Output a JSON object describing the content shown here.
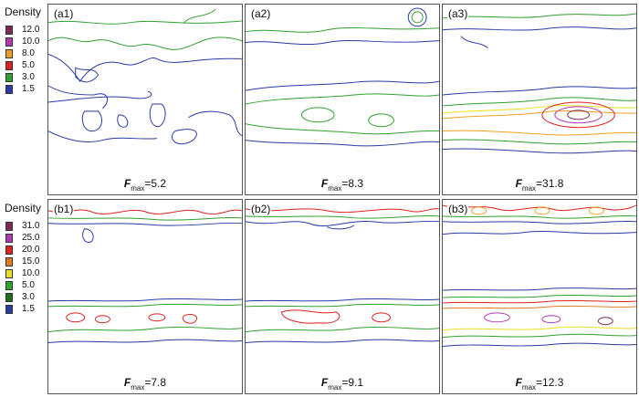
{
  "row_a": {
    "legend": {
      "title": "Density",
      "levels": [
        {
          "value": "12.0",
          "color": "#7a2b57"
        },
        {
          "value": "10.0",
          "color": "#b03ab0"
        },
        {
          "value": "8.0",
          "color": "#f0a020"
        },
        {
          "value": "5.0",
          "color": "#e02020"
        },
        {
          "value": "3.0",
          "color": "#30a030"
        },
        {
          "value": "1.5",
          "color": "#2a3aa8"
        }
      ]
    },
    "panels": [
      {
        "label": "(a1)",
        "f_symbol": "F",
        "f_sub": "max",
        "f_value": "=5.2"
      },
      {
        "label": "(a2)",
        "f_symbol": "F",
        "f_sub": "max",
        "f_value": "=8.3"
      },
      {
        "label": "(a3)",
        "f_symbol": "F",
        "f_sub": "max",
        "f_value": "=31.8"
      }
    ]
  },
  "row_b": {
    "legend": {
      "title": "Density",
      "levels": [
        {
          "value": "31.0",
          "color": "#7a2b57"
        },
        {
          "value": "25.0",
          "color": "#b03ab0"
        },
        {
          "value": "20.0",
          "color": "#e02020"
        },
        {
          "value": "15.0",
          "color": "#e07a20"
        },
        {
          "value": "10.0",
          "color": "#e8e020"
        },
        {
          "value": "5.0",
          "color": "#30a030"
        },
        {
          "value": "3.0",
          "color": "#1f6e1f"
        },
        {
          "value": "1.5",
          "color": "#2a3aa8"
        }
      ]
    },
    "panels": [
      {
        "label": "(b1)",
        "f_symbol": "F",
        "f_sub": "max",
        "f_value": "=7.8"
      },
      {
        "label": "(b2)",
        "f_symbol": "F",
        "f_sub": "max",
        "f_value": "=9.1"
      },
      {
        "label": "(b3)",
        "f_symbol": "F",
        "f_sub": "max",
        "f_value": "=12.3"
      }
    ]
  }
}
